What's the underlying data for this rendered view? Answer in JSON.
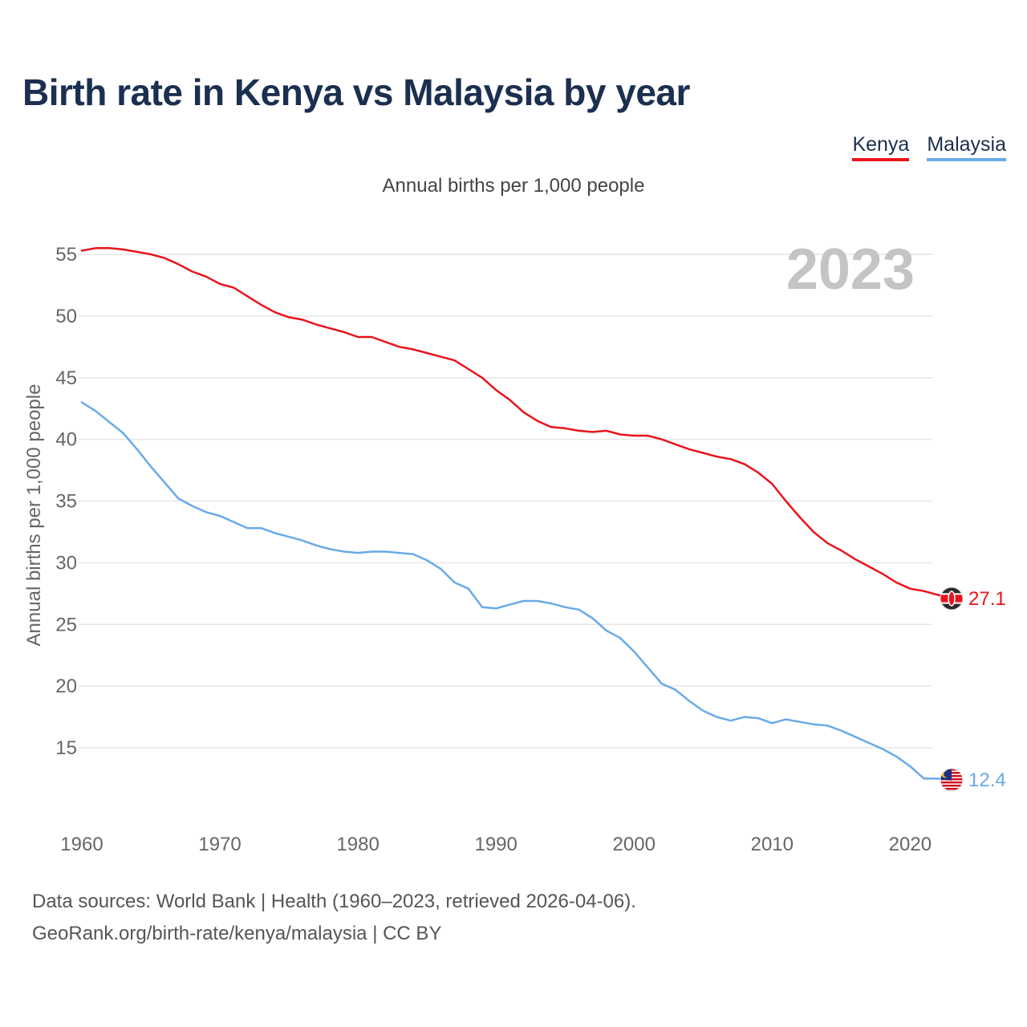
{
  "title": "Birth rate in Kenya vs Malaysia by year",
  "legend": {
    "kenya": "Kenya",
    "malaysia": "Malaysia"
  },
  "subtitle": "Annual births per 1,000 people",
  "footer": {
    "line1": "Data sources: World Bank | Health (1960–2023, retrieved 2026-04-06).",
    "line2": "GeoRank.org/birth-rate/kenya/malaysia | CC BY"
  },
  "chart_data": {
    "type": "line",
    "title": "Birth rate in Kenya vs Malaysia by year",
    "ylabel": "Annual births per 1,000 people",
    "xlabel": "",
    "year_label": "2023",
    "xlim": [
      1960,
      2023
    ],
    "ylim": [
      10,
      57
    ],
    "x_ticks": [
      1960,
      1970,
      1980,
      1990,
      2000,
      2010,
      2020
    ],
    "y_ticks": [
      15,
      20,
      25,
      30,
      35,
      40,
      45,
      50,
      55
    ],
    "grid": true,
    "x": [
      1960,
      1961,
      1962,
      1963,
      1964,
      1965,
      1966,
      1967,
      1968,
      1969,
      1970,
      1971,
      1972,
      1973,
      1974,
      1975,
      1976,
      1977,
      1978,
      1979,
      1980,
      1981,
      1982,
      1983,
      1984,
      1985,
      1986,
      1987,
      1988,
      1989,
      1990,
      1991,
      1992,
      1993,
      1994,
      1995,
      1996,
      1997,
      1998,
      1999,
      2000,
      2001,
      2002,
      2003,
      2004,
      2005,
      2006,
      2007,
      2008,
      2009,
      2010,
      2011,
      2012,
      2013,
      2014,
      2015,
      2016,
      2017,
      2018,
      2019,
      2020,
      2021,
      2022,
      2023
    ],
    "series": [
      {
        "name": "Kenya",
        "color": "#e8141c",
        "end_label": "27.1",
        "values": [
          55.3,
          55.5,
          55.5,
          55.4,
          55.2,
          55.0,
          54.7,
          54.2,
          53.6,
          53.2,
          52.6,
          52.3,
          51.6,
          50.9,
          50.3,
          49.9,
          49.7,
          49.3,
          49.0,
          48.7,
          48.3,
          48.3,
          47.9,
          47.5,
          47.3,
          47.0,
          46.7,
          46.4,
          45.7,
          45.0,
          44.0,
          43.2,
          42.2,
          41.5,
          41.0,
          40.9,
          40.7,
          40.6,
          40.7,
          40.4,
          40.3,
          40.3,
          40.0,
          39.6,
          39.2,
          38.9,
          38.6,
          38.4,
          38.0,
          37.3,
          36.4,
          35.0,
          33.7,
          32.5,
          31.6,
          31.0,
          30.3,
          29.7,
          29.1,
          28.4,
          27.9,
          27.7,
          27.4,
          27.1
        ]
      },
      {
        "name": "Malaysia",
        "color": "#68aae8",
        "end_label": "12.4",
        "values": [
          43.0,
          42.3,
          41.4,
          40.5,
          39.2,
          37.8,
          36.5,
          35.2,
          34.6,
          34.1,
          33.8,
          33.3,
          32.8,
          32.8,
          32.4,
          32.1,
          31.8,
          31.4,
          31.1,
          30.9,
          30.8,
          30.9,
          30.9,
          30.8,
          30.7,
          30.2,
          29.5,
          28.4,
          27.9,
          26.4,
          26.3,
          26.6,
          26.9,
          26.9,
          26.7,
          26.4,
          26.2,
          25.5,
          24.5,
          23.9,
          22.8,
          21.5,
          20.2,
          19.7,
          18.8,
          18.0,
          17.5,
          17.2,
          17.5,
          17.4,
          17.0,
          17.3,
          17.1,
          16.9,
          16.8,
          16.4,
          15.9,
          15.4,
          14.9,
          14.3,
          13.5,
          12.5,
          12.5,
          12.4
        ]
      }
    ]
  },
  "colors": {
    "title": "#1b2f50",
    "grid": "#e6e6e6",
    "axis_text": "#666666",
    "year_watermark": "#c4c4c4",
    "kenya_flag_black": "#2b2b2b",
    "kenya_flag_red": "#e8141c",
    "malaysia_flag_blue": "#1f2f80",
    "malaysia_flag_yellow": "#f5c518"
  }
}
